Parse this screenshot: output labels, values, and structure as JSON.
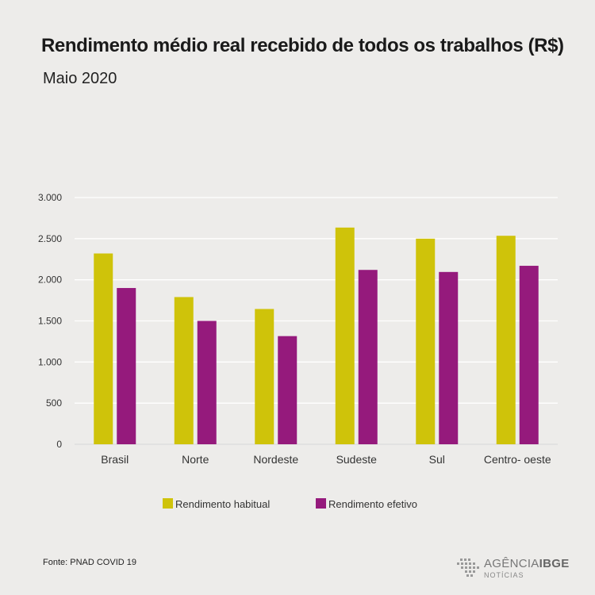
{
  "title": "Rendimento médio real recebido de todos os trabalhos (R$)",
  "subtitle": "Maio 2020",
  "source": "Fonte: PNAD COVID 19",
  "logo": {
    "name_part1": "AGÊNCIA",
    "name_part2": "IBGE",
    "sub": "NOTÍCIAS"
  },
  "colors": {
    "habitual": "#cfc30a",
    "efetivo": "#951a7c",
    "grid": "#ffffff",
    "background": "#edecea"
  },
  "chart_data": {
    "type": "bar",
    "title": "Rendimento médio real recebido de todos os trabalhos (R$)",
    "subtitle": "Maio 2020",
    "categories": [
      "Brasil",
      "Norte",
      "Nordeste",
      "Sudeste",
      "Sul",
      "Centro- oeste"
    ],
    "series": [
      {
        "name": "Rendimento habitual",
        "color": "#cfc30a",
        "values": [
          2320,
          1790,
          1645,
          2635,
          2500,
          2535
        ]
      },
      {
        "name": "Rendimento efetivo",
        "color": "#951a7c",
        "values": [
          1900,
          1500,
          1315,
          2120,
          2095,
          2170
        ]
      }
    ],
    "yticks": [
      0,
      500,
      1000,
      1500,
      2000,
      2500,
      3000
    ],
    "ytick_labels": [
      "0",
      "500",
      "1.000",
      "1.500",
      "2.000",
      "2.500",
      "3.000"
    ],
    "ylim": [
      0,
      3000
    ],
    "xlabel": "",
    "ylabel": "",
    "grid": true,
    "legend_position": "bottom-center"
  }
}
